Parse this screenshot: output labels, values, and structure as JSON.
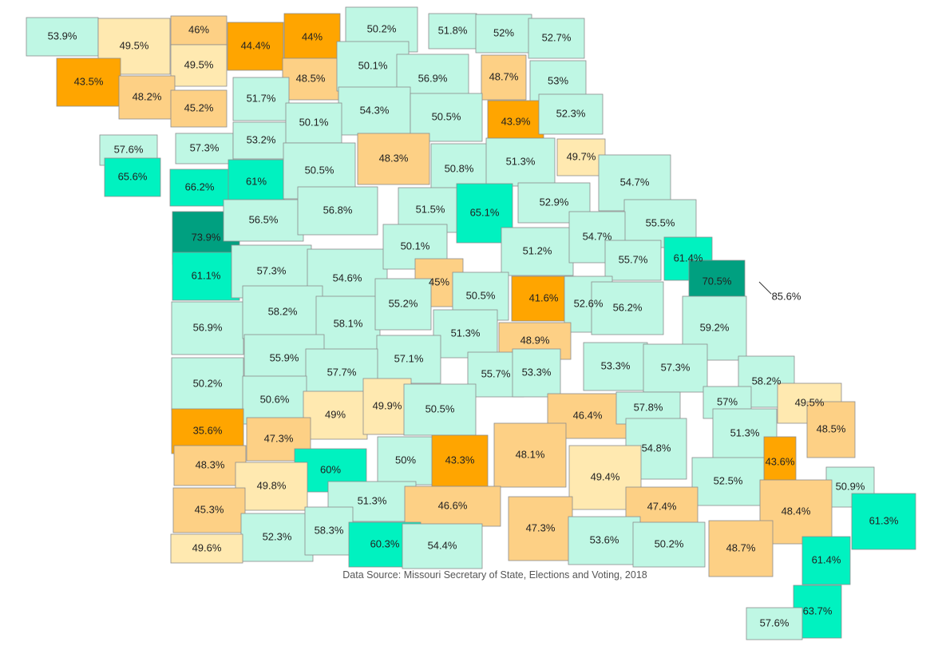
{
  "map": {
    "source": "Data Source: Missouri Secretary of State, Elections and Voting, 2018",
    "colors": {
      "lt44": "#ffa500",
      "44to49": "#fdd085",
      "49to50": "#ffe9b0",
      "50to60": "#bff7e4",
      "60to70": "#00f2c0",
      "gt70": "#00a080",
      "border": "#8c8c8c",
      "text": "#222222"
    },
    "counties": [
      {
        "label": "53.9%",
        "v": 53.9
      },
      {
        "label": "49.5%",
        "v": 49.5
      },
      {
        "label": "46%",
        "v": 46
      },
      {
        "label": "44.4%",
        "v": 44.4
      },
      {
        "label": "44%",
        "v": 44
      },
      {
        "label": "50.2%",
        "v": 50.2
      },
      {
        "label": "51.8%",
        "v": 51.8
      },
      {
        "label": "52%",
        "v": 52
      },
      {
        "label": "52.7%",
        "v": 52.7
      },
      {
        "label": "43.5%",
        "v": 43.5
      },
      {
        "label": "49.5%",
        "v": 49.5
      },
      {
        "label": "48.5%",
        "v": 48.5
      },
      {
        "label": "50.1%",
        "v": 50.1
      },
      {
        "label": "56.9%",
        "v": 56.9
      },
      {
        "label": "48.7%",
        "v": 48.7
      },
      {
        "label": "53%",
        "v": 53
      },
      {
        "label": "48.2%",
        "v": 48.2
      },
      {
        "label": "45.2%",
        "v": 45.2
      },
      {
        "label": "51.7%",
        "v": 51.7
      },
      {
        "label": "54.3%",
        "v": 54.3
      },
      {
        "label": "50.5%",
        "v": 50.5
      },
      {
        "label": "43.9%",
        "v": 43.9
      },
      {
        "label": "52.3%",
        "v": 52.3
      },
      {
        "label": "57.6%",
        "v": 57.6
      },
      {
        "label": "57.3%",
        "v": 57.3
      },
      {
        "label": "53.2%",
        "v": 53.2
      },
      {
        "label": "50.1%",
        "v": 50.1
      },
      {
        "label": "48.3%",
        "v": 48.3
      },
      {
        "label": "49.7%",
        "v": 49.7
      },
      {
        "label": "65.6%",
        "v": 65.6
      },
      {
        "label": "66.2%",
        "v": 66.2
      },
      {
        "label": "61%",
        "v": 61
      },
      {
        "label": "50.5%",
        "v": 50.5
      },
      {
        "label": "50.8%",
        "v": 50.8
      },
      {
        "label": "51.3%",
        "v": 51.3
      },
      {
        "label": "54.7%",
        "v": 54.7
      },
      {
        "label": "73.9%",
        "v": 73.9
      },
      {
        "label": "56.5%",
        "v": 56.5
      },
      {
        "label": "56.8%",
        "v": 56.8
      },
      {
        "label": "51.5%",
        "v": 51.5
      },
      {
        "label": "65.1%",
        "v": 65.1
      },
      {
        "label": "52.9%",
        "v": 52.9
      },
      {
        "label": "55.5%",
        "v": 55.5
      },
      {
        "label": "61.1%",
        "v": 61.1
      },
      {
        "label": "57.3%",
        "v": 57.3
      },
      {
        "label": "54.6%",
        "v": 54.6
      },
      {
        "label": "50.1%",
        "v": 50.1
      },
      {
        "label": "45%",
        "v": 45
      },
      {
        "label": "51.2%",
        "v": 51.2
      },
      {
        "label": "54.7%",
        "v": 54.7
      },
      {
        "label": "55.7%",
        "v": 55.7
      },
      {
        "label": "61.4%",
        "v": 61.4
      },
      {
        "label": "70.5%",
        "v": 70.5
      },
      {
        "label": "85.6%",
        "v": 85.6
      },
      {
        "label": "56.9%",
        "v": 56.9
      },
      {
        "label": "58.2%",
        "v": 58.2
      },
      {
        "label": "58.1%",
        "v": 58.1
      },
      {
        "label": "55.2%",
        "v": 55.2
      },
      {
        "label": "50.5%",
        "v": 50.5
      },
      {
        "label": "41.6%",
        "v": 41.6
      },
      {
        "label": "52.6%",
        "v": 52.6
      },
      {
        "label": "56.2%",
        "v": 56.2
      },
      {
        "label": "59.2%",
        "v": 59.2
      },
      {
        "label": "55.9%",
        "v": 55.9
      },
      {
        "label": "51.3%",
        "v": 51.3
      },
      {
        "label": "48.9%",
        "v": 48.9
      },
      {
        "label": "57.1%",
        "v": 57.1
      },
      {
        "label": "50.2%",
        "v": 50.2
      },
      {
        "label": "57.7%",
        "v": 57.7
      },
      {
        "label": "55.7%",
        "v": 55.7
      },
      {
        "label": "53.3%",
        "v": 53.3
      },
      {
        "label": "53.3%",
        "v": 53.3
      },
      {
        "label": "57.3%",
        "v": 57.3
      },
      {
        "label": "58.2%",
        "v": 58.2
      },
      {
        "label": "50.6%",
        "v": 50.6
      },
      {
        "label": "49%",
        "v": 49
      },
      {
        "label": "49.9%",
        "v": 49.9
      },
      {
        "label": "50.5%",
        "v": 50.5
      },
      {
        "label": "46.4%",
        "v": 46.4
      },
      {
        "label": "57.8%",
        "v": 57.8
      },
      {
        "label": "57%",
        "v": 57
      },
      {
        "label": "49.5%",
        "v": 49.5
      },
      {
        "label": "35.6%",
        "v": 35.6
      },
      {
        "label": "47.3%",
        "v": 47.3
      },
      {
        "label": "60%",
        "v": 60
      },
      {
        "label": "50%",
        "v": 50
      },
      {
        "label": "43.3%",
        "v": 43.3
      },
      {
        "label": "48.1%",
        "v": 48.1
      },
      {
        "label": "54.8%",
        "v": 54.8
      },
      {
        "label": "51.3%",
        "v": 51.3
      },
      {
        "label": "43.6%",
        "v": 43.6
      },
      {
        "label": "48.5%",
        "v": 48.5
      },
      {
        "label": "48.3%",
        "v": 48.3
      },
      {
        "label": "49.8%",
        "v": 49.8
      },
      {
        "label": "49.4%",
        "v": 49.4
      },
      {
        "label": "52.5%",
        "v": 52.5
      },
      {
        "label": "50.9%",
        "v": 50.9
      },
      {
        "label": "45.3%",
        "v": 45.3
      },
      {
        "label": "51.3%",
        "v": 51.3
      },
      {
        "label": "46.6%",
        "v": 46.6
      },
      {
        "label": "47.4%",
        "v": 47.4
      },
      {
        "label": "48.4%",
        "v": 48.4
      },
      {
        "label": "61.3%",
        "v": 61.3
      },
      {
        "label": "52.3%",
        "v": 52.3
      },
      {
        "label": "58.3%",
        "v": 58.3
      },
      {
        "label": "60.3%",
        "v": 60.3
      },
      {
        "label": "54.4%",
        "v": 54.4
      },
      {
        "label": "47.3%",
        "v": 47.3
      },
      {
        "label": "53.6%",
        "v": 53.6
      },
      {
        "label": "50.2%",
        "v": 50.2
      },
      {
        "label": "48.7%",
        "v": 48.7
      },
      {
        "label": "61.4%",
        "v": 61.4
      },
      {
        "label": "49.6%",
        "v": 49.6
      },
      {
        "label": "63.7%",
        "v": 63.7
      },
      {
        "label": "57.6%",
        "v": 57.6
      }
    ]
  }
}
